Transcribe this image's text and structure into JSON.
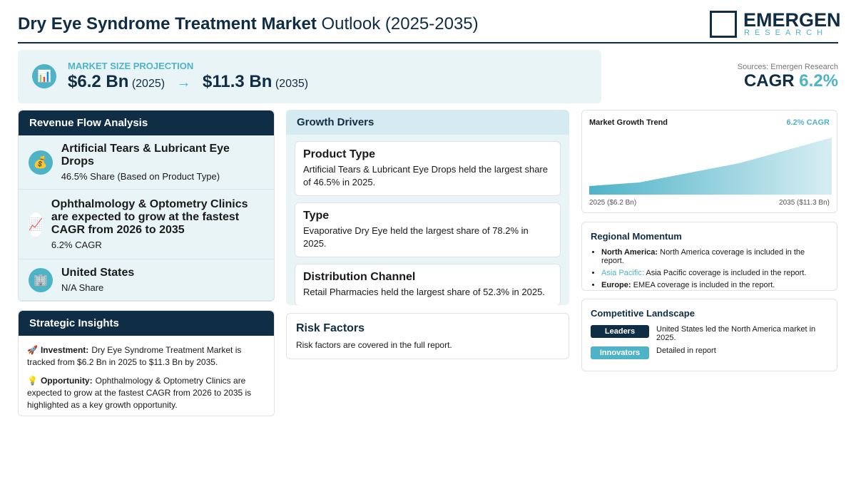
{
  "header": {
    "title_bold": "Dry Eye Syndrome Treatment Market",
    "title_rest": "Outlook (2025-2035)",
    "logo_top": "EMERGEN",
    "logo_bottom": "RESEARCH"
  },
  "projection": {
    "icon": "📊",
    "label": "MARKET SIZE PROJECTION",
    "start_value": "$6.2 Bn",
    "start_year": "(2025)",
    "arrow": "→",
    "end_value": "$11.3 Bn",
    "end_year": "(2035)"
  },
  "summary": {
    "sources": "Sources: Emergen Research",
    "cagr_label": "CAGR",
    "cagr_value": "6.2%"
  },
  "revenue_flow": {
    "title": "Revenue Flow Analysis",
    "items": [
      {
        "icon": "💰",
        "title": "Artificial Tears & Lubricant Eye Drops",
        "subtitle": "46.5% Share (Based on Product Type)"
      },
      {
        "icon": "📈",
        "title": "Ophthalmology & Optometry Clinics are expected to grow at the fastest CAGR from 2026 to 2035",
        "subtitle": "6.2% CAGR"
      },
      {
        "icon": "🏢",
        "title": "United States",
        "subtitle": "N/A Share"
      }
    ]
  },
  "strategic_insights": {
    "title": "Strategic Insights",
    "items": [
      {
        "icon": "🚀",
        "label": "Investment:",
        "text": "Dry Eye Syndrome Treatment Market is tracked from $6.2 Bn in 2025 to $11.3 Bn by 2035."
      },
      {
        "icon": "💡",
        "label": "Opportunity:",
        "text": "Ophthalmology & Optometry Clinics are expected to grow at the fastest CAGR from 2026 to 2035 is highlighted as a key growth opportunity."
      }
    ]
  },
  "growth_drivers": {
    "title": "Growth Drivers",
    "cards": [
      {
        "title": "Product Type",
        "text": "Artificial Tears & Lubricant Eye Drops held the largest share of 46.5% in 2025."
      },
      {
        "title": "Type",
        "text": "Evaporative Dry Eye held the largest share of 78.2% in 2025."
      },
      {
        "title": "Distribution Channel",
        "text": "Retail Pharmacies held the largest share of 52.3% in 2025."
      }
    ]
  },
  "risk_factors": {
    "title": "Risk Factors",
    "text": "Risk factors are covered in the full report."
  },
  "trend": {
    "title": "Market Growth Trend",
    "cagr": "6.2% CAGR",
    "start_label": "2025 ($6.2 Bn)",
    "end_label": "2035 ($11.3 Bn)"
  },
  "regional": {
    "title": "Regional Momentum",
    "items": [
      {
        "region": "North America:",
        "text": "North America coverage is included in the report."
      },
      {
        "region": "Asia Pacific:",
        "text": "Asia Pacific coverage is included in the report."
      },
      {
        "region": "Europe:",
        "text": "EMEA coverage is included in the report."
      }
    ]
  },
  "competitive": {
    "title": "Competitive Landscape",
    "rows": [
      {
        "badge": "Leaders",
        "text": "United States led the North America market in 2025."
      },
      {
        "badge": "Innovators",
        "text": "Detailed in report"
      }
    ]
  }
}
